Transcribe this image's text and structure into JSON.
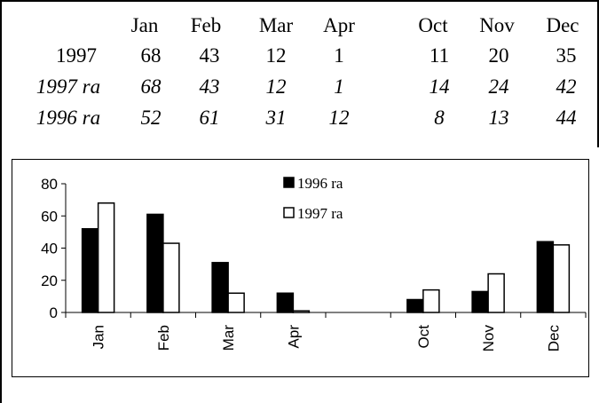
{
  "table": {
    "months": [
      "Jan",
      "Feb",
      "Mar",
      "Apr",
      "Oct",
      "Nov",
      "Dec"
    ],
    "rows": [
      {
        "label": "1997",
        "italic": false,
        "values": [
          "68",
          "43",
          "12",
          "1",
          "11",
          "20",
          "35"
        ]
      },
      {
        "label": "1997 ra",
        "italic": true,
        "values": [
          "68",
          "43",
          "12",
          "1",
          "14",
          "24",
          "42"
        ]
      },
      {
        "label": "1996 ra",
        "italic": true,
        "values": [
          "52",
          "61",
          "31",
          "12",
          "8",
          "13",
          "44"
        ]
      }
    ]
  },
  "chart_data": {
    "type": "bar",
    "categories": [
      "Jan",
      "Feb",
      "Mar",
      "Apr",
      "",
      "Oct",
      "Nov",
      "Dec"
    ],
    "series": [
      {
        "name": "1996 ra",
        "values": [
          52,
          61,
          31,
          12,
          null,
          8,
          13,
          44
        ],
        "fill": "#000000"
      },
      {
        "name": "1997 ra",
        "values": [
          68,
          43,
          12,
          1,
          null,
          14,
          24,
          42
        ],
        "fill": "#ffffff"
      }
    ],
    "ylim": [
      0,
      80
    ],
    "yticks": [
      "0",
      "20",
      "40",
      "60",
      "80"
    ],
    "xlabel": "",
    "ylabel": "",
    "title": "",
    "legend_position": "top-center",
    "grid": false
  }
}
